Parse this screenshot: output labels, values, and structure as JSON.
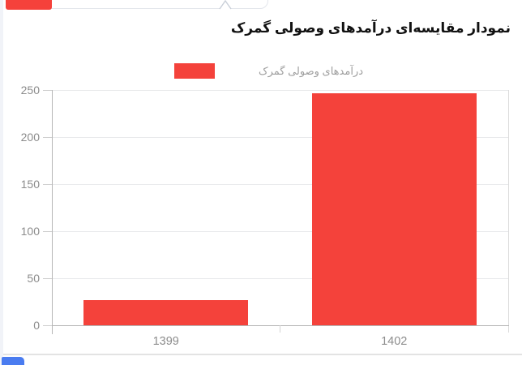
{
  "page": {
    "heading": "نمودار مقایسه‌ای درآمدهای وصولی گمرک"
  },
  "fragments": {
    "top_red_color": "#f5413b",
    "bottom_blue_color": "#4a7cf0"
  },
  "legend": {
    "label": "درآمدهای وصولی گمرک",
    "swatch_color": "#f4423b"
  },
  "chart_data": {
    "type": "bar",
    "title": "نمودار مقایسه‌ای درآمدهای وصولی گمرک",
    "categories": [
      "1399",
      "1402"
    ],
    "series": [
      {
        "name": "درآمدهای وصولی گمرک",
        "values": [
          27,
          247
        ]
      }
    ],
    "xlabel": "",
    "ylabel": "",
    "ylim": [
      0,
      250
    ],
    "yticks": [
      0,
      50,
      100,
      150,
      200,
      250
    ],
    "bar_color": "#f4423b",
    "grid": true,
    "legend_position": "top"
  }
}
